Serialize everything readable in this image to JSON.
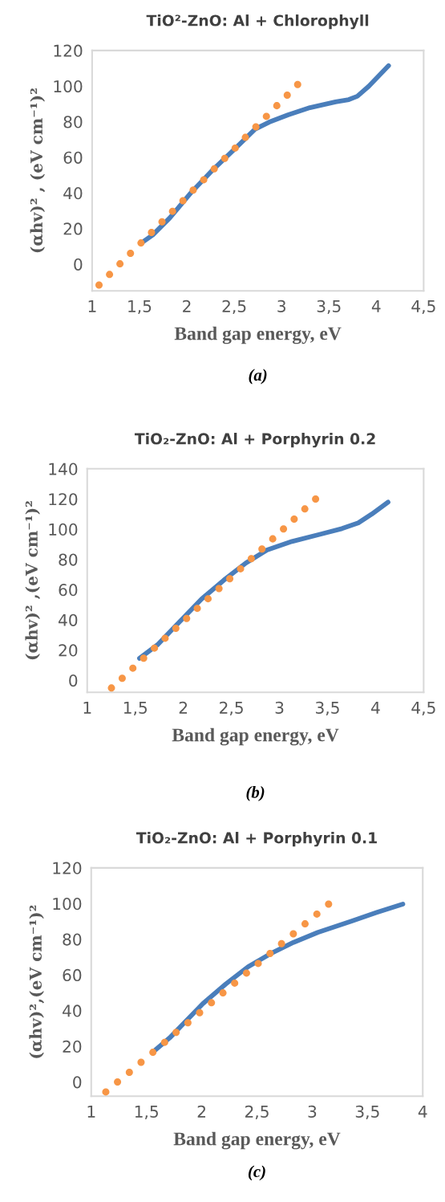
{
  "chart_data": [
    {
      "type": "scatter",
      "title": "TiO²-ZnO: Al + Chlorophyll",
      "xlabel": "Band gap energy, eV",
      "ylabel": "(αhv)² , (eV cm⁻¹)²",
      "annotations": [
        "(a)"
      ],
      "xlim": [
        1,
        4.5
      ],
      "xticks": [
        1,
        {
          "value": 1.5,
          "label": "1,5"
        },
        2,
        {
          "value": 2.5,
          "label": "2,5"
        },
        3,
        {
          "value": 3.5,
          "label": "3,5"
        },
        4,
        {
          "value": 4.5,
          "label": "4,5"
        }
      ],
      "ylim": [
        -15,
        120
      ],
      "yticks": [
        0,
        20,
        40,
        60,
        80,
        100,
        120
      ],
      "grid": false,
      "series": [
        {
          "type": "line",
          "color": "#4a7ebb",
          "marker": "none",
          "line_style": "solid",
          "x": [
            1.52,
            1.64,
            1.82,
            2.05,
            2.28,
            2.52,
            2.72,
            2.87,
            3.07,
            3.3,
            3.57,
            3.71,
            3.8,
            3.92,
            4.13
          ],
          "values": [
            11.9,
            16.4,
            26,
            40.5,
            53.3,
            65.4,
            75.8,
            79.8,
            83.9,
            87.9,
            91.1,
            92.4,
            94.3,
            99.9,
            111.5
          ]
        },
        {
          "color": "#f79646",
          "marker": "circle",
          "x": [
            1.073,
            1.184,
            1.294,
            1.405,
            1.516,
            1.627,
            1.738,
            1.849,
            1.959,
            2.067,
            2.178,
            2.289,
            2.4,
            2.51,
            2.618,
            2.729,
            2.84,
            2.95,
            3.06,
            3.17
          ],
          "values": [
            -11.7,
            -5.8,
            0.2,
            6.1,
            11.9,
            17.8,
            23.8,
            29.7,
            35.6,
            41.6,
            47.4,
            53.5,
            59.4,
            65.2,
            71.2,
            77.1,
            83.0,
            89.0,
            94.9,
            100.9
          ]
        }
      ]
    },
    {
      "type": "scatter",
      "title": "TiO₂-ZnO: Al + Porphyrin 0.2",
      "xlabel": "Band gap energy, eV",
      "ylabel": "(αhv)² ,(eV cm⁻¹)²",
      "annotations": [
        "(b)"
      ],
      "xlim": [
        1,
        4.5
      ],
      "xticks": [
        1,
        {
          "value": 1.5,
          "label": "1,5"
        },
        2,
        {
          "value": 2.5,
          "label": "2,5"
        },
        3,
        {
          "value": 3.5,
          "label": "3,5"
        },
        4,
        {
          "value": 4.5,
          "label": "4,5"
        }
      ],
      "ylim": [
        -8,
        140
      ],
      "yticks": [
        0,
        20,
        40,
        60,
        80,
        100,
        120,
        140
      ],
      "grid": false,
      "series": [
        {
          "type": "line",
          "color": "#4a7ebb",
          "marker": "none",
          "line_style": "solid",
          "x": [
            1.544,
            1.73,
            1.96,
            2.19,
            2.42,
            2.65,
            2.87,
            3.13,
            3.42,
            3.65,
            3.82,
            3.96,
            4.13
          ],
          "values": [
            14.5,
            23.4,
            38.6,
            53.8,
            66.2,
            77.6,
            86.2,
            91.9,
            96.6,
            100.4,
            104.2,
            110,
            117.9
          ]
        },
        {
          "color": "#f79646",
          "marker": "circle",
          "x": [
            1.252,
            1.364,
            1.475,
            1.587,
            1.699,
            1.81,
            1.922,
            2.034,
            2.145,
            2.257,
            2.371,
            2.483,
            2.595,
            2.707,
            2.818,
            2.93,
            3.042,
            3.153,
            3.264,
            3.376
          ],
          "values": [
            -5.1,
            1.3,
            8.0,
            14.6,
            21.3,
            27.8,
            34.4,
            40.9,
            47.6,
            54.0,
            60.7,
            67.2,
            73.8,
            80.5,
            86.9,
            93.6,
            100.2,
            106.7,
            113.4,
            120.0
          ]
        }
      ]
    },
    {
      "type": "scatter",
      "title": "TiO₂-ZnO: Al + Porphyrin 0.1",
      "xlabel": "Band gap energy, eV",
      "ylabel": "(αhv)²,(eV cm⁻¹)²",
      "annotations": [
        "(c)"
      ],
      "xlim": [
        1,
        4
      ],
      "xticks": [
        1,
        {
          "value": 1.5,
          "label": "1,5"
        },
        2,
        {
          "value": 2.5,
          "label": "2,5"
        },
        3,
        {
          "value": 3.5,
          "label": "3,5"
        },
        4
      ],
      "ylim": [
        -8,
        120
      ],
      "yticks": [
        0,
        20,
        40,
        60,
        80,
        100,
        120
      ],
      "grid": false,
      "series": [
        {
          "type": "line",
          "color": "#4a7ebb",
          "marker": "none",
          "line_style": "solid",
          "x": [
            1.558,
            1.71,
            1.86,
            2.01,
            2.22,
            2.42,
            2.62,
            2.83,
            3.05,
            3.36,
            3.58,
            3.82
          ],
          "values": [
            16.8,
            24.7,
            34.3,
            43.9,
            55.0,
            64.6,
            71.8,
            78.2,
            83.8,
            90.2,
            94.9,
            99.7
          ]
        },
        {
          "color": "#f79646",
          "marker": "circle",
          "x": [
            1.132,
            1.238,
            1.345,
            1.451,
            1.558,
            1.664,
            1.768,
            1.875,
            1.981,
            2.088,
            2.192,
            2.298,
            2.405,
            2.511,
            2.618,
            2.722,
            2.829,
            2.935,
            3.042,
            3.148
          ],
          "values": [
            -5.6,
            0,
            5.4,
            11.0,
            16.6,
            22.2,
            27.8,
            33.2,
            38.8,
            44.4,
            49.9,
            55.4,
            61.0,
            66.4,
            72.0,
            77.5,
            83.0,
            88.6,
            94.1,
            99.7
          ]
        }
      ]
    }
  ]
}
